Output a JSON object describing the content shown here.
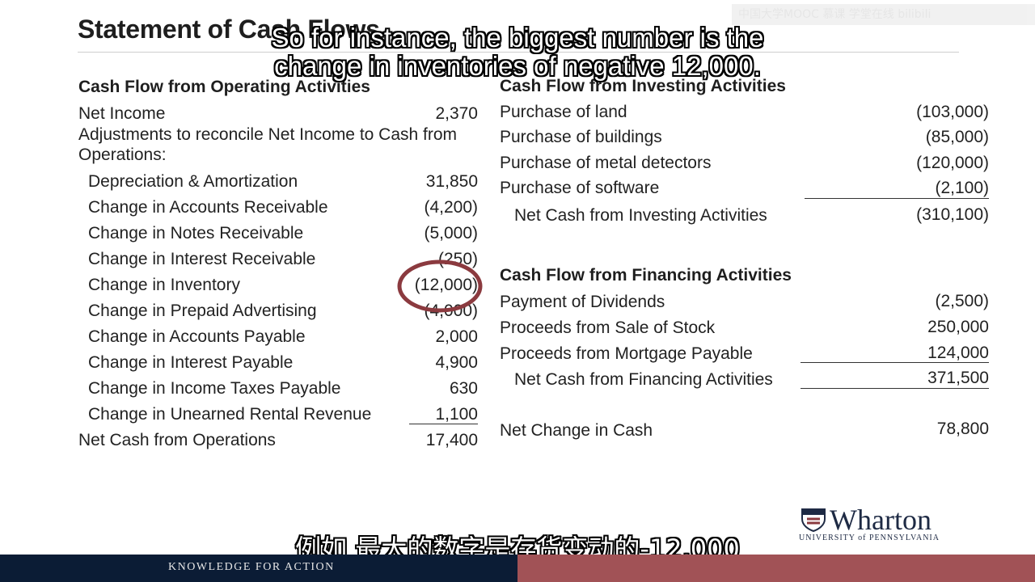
{
  "title": "Statement of Cash Flows",
  "watermark": "中国大学MOOC 慕课 学堂在线 bilibili",
  "subtitle_en": {
    "line1": "So for instance, the biggest number is the",
    "line2": "change in inventories of negative 12,000."
  },
  "subtitle_zh": "例如 最大的数字是存货变动的-12,000",
  "operating": {
    "heading": "Cash Flow from Operating Activities",
    "net_income": {
      "label": "Net Income",
      "value": "2,370"
    },
    "adjust_line1": "Adjustments to reconcile Net Income to Cash from",
    "adjust_line2": "Operations:",
    "items": [
      {
        "label": "Depreciation & Amortization",
        "value": "31,850"
      },
      {
        "label": "Change in Accounts Receivable",
        "value": "(4,200)"
      },
      {
        "label": "Change in Notes Receivable",
        "value": "(5,000)"
      },
      {
        "label": "Change in Interest Receivable",
        "value": "(250)"
      },
      {
        "label": "Change in Inventory",
        "value": "(12,000)"
      },
      {
        "label": "Change in Prepaid Advertising",
        "value": "(4,000)"
      },
      {
        "label": "Change in Accounts Payable",
        "value": "2,000"
      },
      {
        "label": "Change in Interest Payable",
        "value": "4,900"
      },
      {
        "label": "Change in Income Taxes Payable",
        "value": "630"
      },
      {
        "label": "Change in Unearned Rental Revenue",
        "value": "1,100"
      }
    ],
    "total": {
      "label": "Net Cash from Operations",
      "value": "17,400"
    }
  },
  "investing": {
    "heading": "Cash Flow from Investing Activities",
    "items": [
      {
        "label": "Purchase of land",
        "value": "(103,000)"
      },
      {
        "label": "Purchase of buildings",
        "value": "(85,000)"
      },
      {
        "label": "Purchase of metal detectors",
        "value": "(120,000)"
      },
      {
        "label": "Purchase of software",
        "value": "(2,100)"
      }
    ],
    "total": {
      "label": "Net Cash from Investing Activities",
      "value": "(310,100)"
    }
  },
  "financing": {
    "heading": "Cash Flow from Financing Activities",
    "items": [
      {
        "label": "Payment of Dividends",
        "value": "(2,500)"
      },
      {
        "label": "Proceeds from Sale of Stock",
        "value": "250,000"
      },
      {
        "label": "Proceeds from Mortgage Payable",
        "value": "124,000"
      }
    ],
    "total": {
      "label": "Net Cash from Financing Activities",
      "value": "371,500"
    }
  },
  "net_change": {
    "label": "Net Change in Cash",
    "value": "78,800"
  },
  "logo": {
    "name": "Wharton",
    "sub": "UNIVERSITY of PENNSYLVANIA"
  },
  "tagline": "KNOWLEDGE FOR ACTION",
  "colors": {
    "footer_navy": "#0b1c35",
    "footer_red": "#a15256",
    "highlight_circle": "#8b3a3f"
  }
}
